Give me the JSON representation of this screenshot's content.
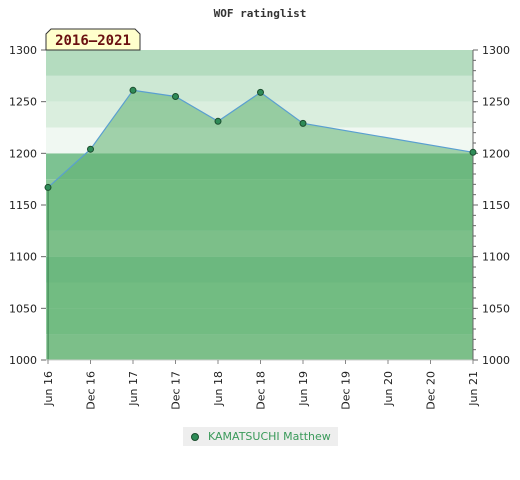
{
  "chart_data": {
    "type": "area",
    "title": "WOF ratinglist",
    "period_badge": "2016–2021",
    "x_tick_labels": [
      "Jun 16",
      "Dec 16",
      "Jun 17",
      "Dec 17",
      "Jun 18",
      "Dec 18",
      "Jun 19",
      "Dec 19",
      "Jun 20",
      "Dec 20",
      "Jun 21"
    ],
    "y_tick_labels": [
      "1000",
      "1050",
      "1100",
      "1150",
      "1200",
      "1250",
      "1300"
    ],
    "ylim": [
      1000,
      1300
    ],
    "grid": true,
    "legend_placement": "bottom",
    "series": [
      {
        "name": "KAMATSUCHI Matthew",
        "x": [
          "Jun 16",
          "Dec 16",
          "Jun 17",
          "Dec 17",
          "Jun 18",
          "Dec 18",
          "Jun 19",
          "Jun 21"
        ],
        "values": [
          1167,
          1204,
          1261,
          1255,
          1231,
          1259,
          1229,
          1201
        ]
      }
    ],
    "colors": {
      "line": "#5a9fd0",
      "area_fill": "#5fb070",
      "marker": "#2e8b57",
      "badge_bg": "#ffffcc"
    }
  }
}
